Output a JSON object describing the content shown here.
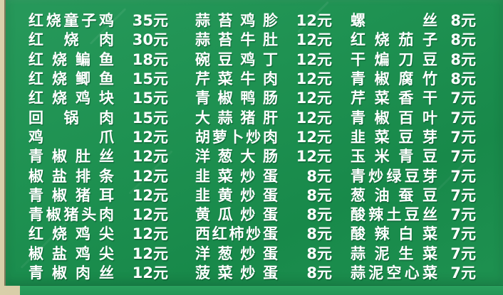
{
  "colors": {
    "board_green": "#1e9150",
    "board_green_light": "#2aa05e",
    "edge_cream": "#d6cca4",
    "text_white": "#ffffff"
  },
  "board": {
    "currency_suffix": "元",
    "columns": [
      {
        "items": [
          {
            "name": "红烧童子鸡",
            "price": "35元"
          },
          {
            "name": "红烧肉",
            "price": "30元"
          },
          {
            "name": "红烧鳊鱼",
            "price": "18元"
          },
          {
            "name": "红烧鲫鱼",
            "price": "15元"
          },
          {
            "name": "红烧鸡块",
            "price": "15元"
          },
          {
            "name": "回锅肉",
            "price": "15元"
          },
          {
            "name": "鸡爪",
            "price": "12元"
          },
          {
            "name": "青椒肚丝",
            "price": "12元"
          },
          {
            "name": "椒盐排条",
            "price": "12元"
          },
          {
            "name": "青椒猪耳",
            "price": "12元"
          },
          {
            "name": "青椒猪头肉",
            "price": "12元"
          },
          {
            "name": "红烧鸡尖",
            "price": "12元"
          },
          {
            "name": "椒盐鸡尖",
            "price": "12元"
          },
          {
            "name": "青椒肉丝",
            "price": "12元"
          }
        ]
      },
      {
        "items": [
          {
            "name": "蒜苔鸡胗",
            "price": "12元"
          },
          {
            "name": "蒜苔牛肚",
            "price": "12元"
          },
          {
            "name": "碗豆鸡丁",
            "price": "12元"
          },
          {
            "name": "芹菜牛肉",
            "price": "12元"
          },
          {
            "name": "青椒鸭肠",
            "price": "12元"
          },
          {
            "name": "大蒜猪肝",
            "price": "12元"
          },
          {
            "name": "胡萝卜炒肉",
            "price": "12元"
          },
          {
            "name": "洋葱大肠",
            "price": "12元"
          },
          {
            "name": "韭菜炒蛋",
            "price": "8元"
          },
          {
            "name": "韭黄炒蛋",
            "price": "8元"
          },
          {
            "name": "黄瓜炒蛋",
            "price": "8元"
          },
          {
            "name": "西红柿炒蛋",
            "price": "8元"
          },
          {
            "name": "洋葱炒蛋",
            "price": "8元"
          },
          {
            "name": "菠菜炒蛋",
            "price": "8元"
          }
        ]
      },
      {
        "items": [
          {
            "name": "螺丝",
            "price": "8元"
          },
          {
            "name": "红烧茄子",
            "price": "8元"
          },
          {
            "name": "干煸刀豆",
            "price": "8元"
          },
          {
            "name": "青椒腐竹",
            "price": "8元"
          },
          {
            "name": "芹菜香干",
            "price": "7元"
          },
          {
            "name": "青椒百叶",
            "price": "7元"
          },
          {
            "name": "韭菜豆芽",
            "price": "7元"
          },
          {
            "name": "玉米青豆",
            "price": "7元"
          },
          {
            "name": "青炒绿豆芽",
            "price": "7元"
          },
          {
            "name": "葱油蚕豆",
            "price": "7元"
          },
          {
            "name": "酸辣土豆丝",
            "price": "7元"
          },
          {
            "name": "酸辣白菜",
            "price": "7元"
          },
          {
            "name": "蒜泥生菜",
            "price": "7元"
          },
          {
            "name": "蒜泥空心菜",
            "price": "7元"
          }
        ]
      }
    ]
  }
}
